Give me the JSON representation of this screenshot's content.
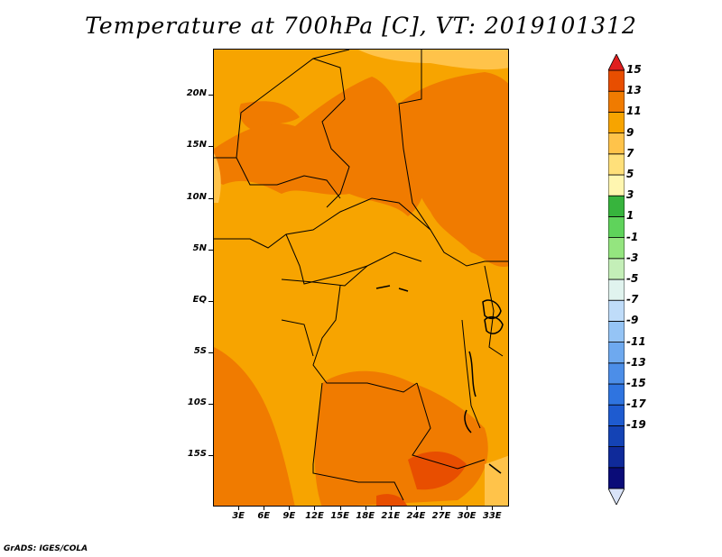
{
  "title": "Temperature at 700hPa [C], VT: 2019101312",
  "credit": "GrADS: IGES/COLA",
  "map": {
    "lat_labels": [
      "20N",
      "15N",
      "10N",
      "5N",
      "EQ",
      "5S",
      "10S",
      "15S"
    ],
    "lon_labels": [
      "3E",
      "6E",
      "9E",
      "12E",
      "15E",
      "18E",
      "21E",
      "24E",
      "27E",
      "30E",
      "33E"
    ],
    "lat_values": [
      20,
      15,
      10,
      5,
      0,
      -5,
      -10,
      -15
    ],
    "lon_values": [
      3,
      6,
      9,
      12,
      15,
      18,
      21,
      24,
      27,
      30,
      33
    ]
  },
  "colorbar": {
    "labels": [
      "15",
      "13",
      "11",
      "9",
      "7",
      "5",
      "3",
      "1",
      "-1",
      "-3",
      "-5",
      "-7",
      "-9",
      "-11",
      "-13",
      "-15",
      "-17",
      "-19"
    ],
    "colors": [
      "#d9e3f8",
      "#0a0c78",
      "#0f2a9a",
      "#1443b5",
      "#1e5bd0",
      "#2f74e0",
      "#4c8ee8",
      "#6ea9ef",
      "#95c4f5",
      "#bfdcf9",
      "#e0f3ee",
      "#c4efb8",
      "#94e57f",
      "#5fd35b",
      "#37b43d",
      "#fff6b0",
      "#ffe07a",
      "#ffc34a",
      "#f7a400",
      "#f07b00",
      "#e84e00",
      "#e01e1e"
    ]
  }
}
